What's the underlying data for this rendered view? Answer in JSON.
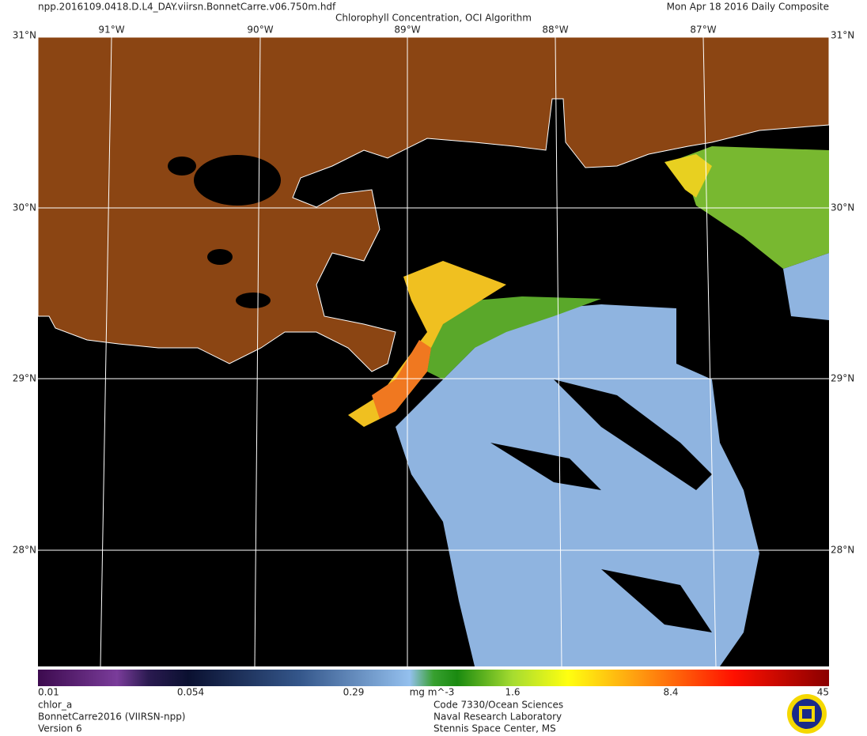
{
  "header": {
    "file": "npp.2016109.0418.D.L4_DAY.viirsn.BonnetCarre.v06.750m.hdf",
    "title": "Chlorophyll Concentration, OCI Algorithm",
    "date": "Mon Apr 18 2016 Daily Composite"
  },
  "map": {
    "lat_labels": [
      "31°N",
      "30°N",
      "29°N",
      "28°N"
    ],
    "lon_labels": [
      "91°W",
      "90°W",
      "89°W",
      "88°W",
      "87°W"
    ]
  },
  "colorbar": {
    "labels": [
      "0.01",
      "0.054",
      "0.29",
      "1.6",
      "8.4",
      "45"
    ],
    "units": "mg m^-3"
  },
  "footer": {
    "left": [
      "chlor_a",
      "BonnetCarre2016 (VIIRSN-npp)",
      "Version 6"
    ],
    "center": [
      "Code 7330/Ocean Sciences",
      "Naval Research Laboratory",
      "Stennis Space Center, MS"
    ]
  }
}
